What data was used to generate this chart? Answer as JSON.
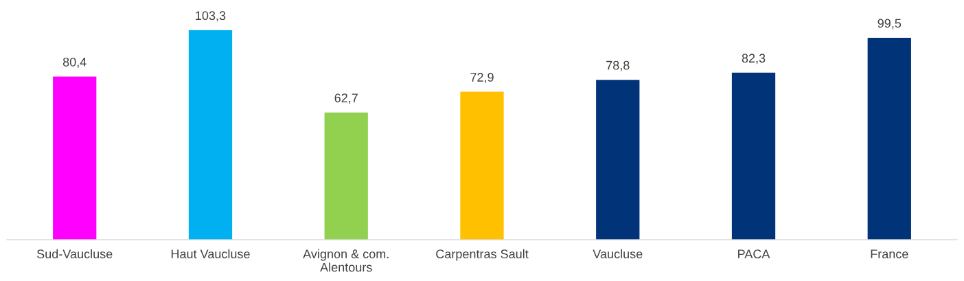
{
  "chart_data": {
    "type": "bar",
    "categories": [
      "Sud-Vaucluse",
      "Haut Vaucluse",
      "Avignon & com.\nAlentours",
      "Carpentras Sault",
      "Vaucluse",
      "PACA",
      "France"
    ],
    "values": [
      80.4,
      103.3,
      62.7,
      72.9,
      78.8,
      82.3,
      99.5
    ],
    "colors": [
      "#ff00ff",
      "#00b0f0",
      "#92d050",
      "#ffc000",
      "#003378",
      "#003378",
      "#003378"
    ],
    "value_labels": [
      "80,4",
      "103,3",
      "62,7",
      "72,9",
      "78,8",
      "82,3",
      "99,5"
    ],
    "grid": false,
    "legend": false
  }
}
